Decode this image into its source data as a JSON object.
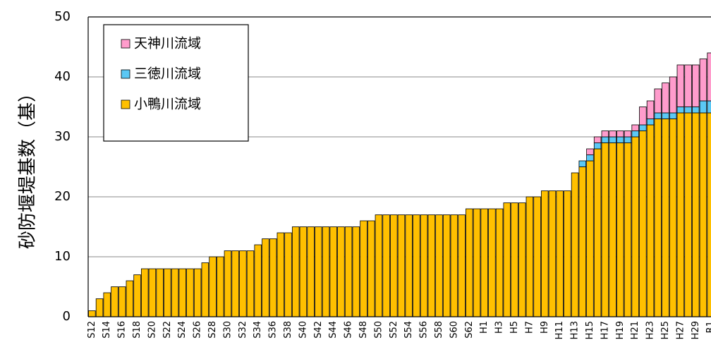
{
  "chart_data": {
    "type": "stacked_bar",
    "y_label": "砂防堰堤基数（基）",
    "categories": [
      "S12",
      null,
      "S14",
      null,
      "S16",
      null,
      "S18",
      null,
      "S20",
      null,
      "S22",
      null,
      "S24",
      null,
      "S26",
      null,
      "S28",
      null,
      "S30",
      null,
      "S32",
      null,
      "S34",
      null,
      "S36",
      null,
      "S38",
      null,
      "S40",
      null,
      "S42",
      null,
      "S44",
      null,
      "S46",
      null,
      "S48",
      null,
      "S50",
      null,
      "S52",
      null,
      "S54",
      null,
      "S56",
      null,
      "S58",
      null,
      "S60",
      null,
      "S62",
      null,
      "H1",
      null,
      "H3",
      null,
      "H5",
      null,
      "H7",
      null,
      "H9",
      null,
      "H11",
      null,
      "H13",
      null,
      "H15",
      null,
      "H17",
      null,
      "H19",
      null,
      "H21",
      null,
      "H23",
      null,
      "H25",
      null,
      "H27",
      null,
      "H29",
      null,
      "R1"
    ],
    "series": [
      {
        "name": "小鴨川流域",
        "color": "#ffc000",
        "values": [
          1,
          3,
          4,
          5,
          5,
          6,
          7,
          8,
          8,
          8,
          8,
          8,
          8,
          8,
          8,
          9,
          10,
          10,
          11,
          11,
          11,
          11,
          12,
          13,
          13,
          14,
          14,
          15,
          15,
          15,
          15,
          15,
          15,
          15,
          15,
          15,
          16,
          16,
          17,
          17,
          17,
          17,
          17,
          17,
          17,
          17,
          17,
          17,
          17,
          17,
          18,
          18,
          18,
          18,
          18,
          19,
          19,
          19,
          20,
          20,
          21,
          21,
          21,
          21,
          24,
          25,
          26,
          28,
          29,
          29,
          29,
          29,
          30,
          31,
          32,
          33,
          33,
          33,
          34,
          34,
          34,
          34,
          34
        ]
      },
      {
        "name": "三徳川流域",
        "color": "#5bc8f5",
        "values": [
          0,
          0,
          0,
          0,
          0,
          0,
          0,
          0,
          0,
          0,
          0,
          0,
          0,
          0,
          0,
          0,
          0,
          0,
          0,
          0,
          0,
          0,
          0,
          0,
          0,
          0,
          0,
          0,
          0,
          0,
          0,
          0,
          0,
          0,
          0,
          0,
          0,
          0,
          0,
          0,
          0,
          0,
          0,
          0,
          0,
          0,
          0,
          0,
          0,
          0,
          0,
          0,
          0,
          0,
          0,
          0,
          0,
          0,
          0,
          0,
          0,
          0,
          0,
          0,
          0,
          1,
          1,
          1,
          1,
          1,
          1,
          1,
          1,
          1,
          1,
          1,
          1,
          1,
          1,
          1,
          1,
          2,
          2
        ]
      },
      {
        "name": "天神川流域",
        "color": "#ff9ccc",
        "values": [
          0,
          0,
          0,
          0,
          0,
          0,
          0,
          0,
          0,
          0,
          0,
          0,
          0,
          0,
          0,
          0,
          0,
          0,
          0,
          0,
          0,
          0,
          0,
          0,
          0,
          0,
          0,
          0,
          0,
          0,
          0,
          0,
          0,
          0,
          0,
          0,
          0,
          0,
          0,
          0,
          0,
          0,
          0,
          0,
          0,
          0,
          0,
          0,
          0,
          0,
          0,
          0,
          0,
          0,
          0,
          0,
          0,
          0,
          0,
          0,
          0,
          0,
          0,
          0,
          0,
          0,
          1,
          1,
          1,
          1,
          1,
          1,
          1,
          3,
          3,
          4,
          5,
          6,
          7,
          7,
          7,
          7,
          8
        ]
      }
    ],
    "ylim": [
      0,
      50
    ],
    "yticks": [
      0,
      10,
      20,
      30,
      40,
      50
    ],
    "grid": true
  }
}
